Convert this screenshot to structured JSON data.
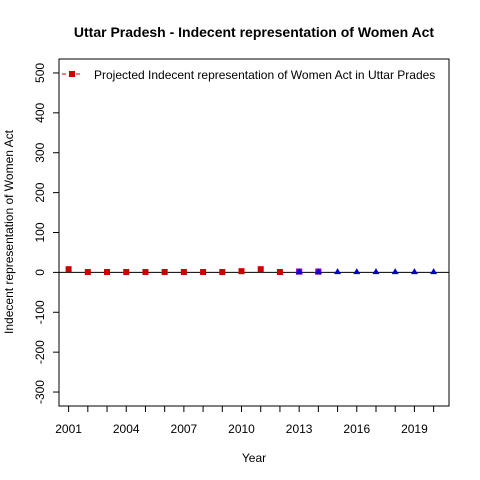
{
  "chart_data": {
    "type": "scatter",
    "title": "Uttar Pradesh  -  Indecent representation of Women Act",
    "xlabel": "Year",
    "ylabel": "Indecent representation of Women Act",
    "xlim": [
      2000.5,
      2020.8
    ],
    "ylim": [
      -335,
      535
    ],
    "x_ticks": [
      2001,
      2004,
      2007,
      2010,
      2013,
      2016,
      2019
    ],
    "y_ticks": [
      -300,
      -200,
      -100,
      0,
      100,
      200,
      300,
      400,
      500
    ],
    "x_minor_ticks": [
      2001,
      2002,
      2003,
      2004,
      2005,
      2006,
      2007,
      2008,
      2009,
      2010,
      2011,
      2012,
      2013,
      2014,
      2015,
      2016,
      2017,
      2018,
      2019,
      2020
    ],
    "hline_y": 0,
    "legend": {
      "position": "top-left",
      "entries": [
        {
          "label": "Projected  Indecent representation of Women Act  in  Uttar Prades",
          "color": "#cc0000",
          "marker": "square",
          "line": "dashed"
        }
      ]
    },
    "series": [
      {
        "marker": "square",
        "color": "#cc0000",
        "x": [
          2001,
          2002,
          2003,
          2004,
          2005,
          2006,
          2007,
          2008,
          2009,
          2010,
          2011,
          2012,
          2013,
          2014
        ],
        "y": [
          8,
          1,
          1,
          1,
          1,
          1,
          1,
          1,
          1,
          3,
          8,
          1,
          2,
          2
        ]
      },
      {
        "marker": "square",
        "color": "#8800cc",
        "x": [
          2013,
          2014
        ],
        "y": [
          2,
          2
        ]
      },
      {
        "marker": "triangle",
        "color": "#0000cc",
        "x": [
          2013,
          2014,
          2015,
          2016,
          2017,
          2018,
          2019,
          2020
        ],
        "y": [
          2,
          2,
          2,
          2,
          2,
          2,
          2,
          2
        ]
      }
    ]
  }
}
